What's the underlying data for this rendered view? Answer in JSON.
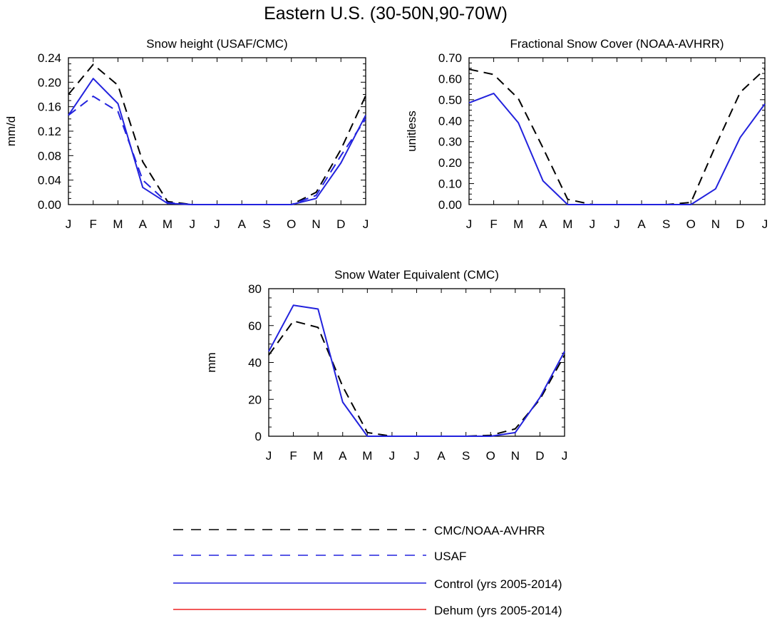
{
  "title": "Eastern U.S. (30-50N,90-70W)",
  "colors": {
    "cmc": "#000000",
    "usaf": "#2222dd",
    "control": "#2222dd",
    "dehum": "#ee2222"
  },
  "legend": [
    {
      "label": "CMC/NOAA-AVHRR",
      "color": "#000000",
      "dash": true
    },
    {
      "label": "USAF",
      "color": "#2222dd",
      "dash": true
    },
    {
      "label": "Control (yrs 2005-2014)",
      "color": "#2222dd",
      "dash": false
    },
    {
      "label": "Dehum (yrs 2005-2014)",
      "color": "#ee2222",
      "dash": false
    }
  ],
  "chart_data": [
    {
      "type": "line",
      "title": "Snow height (USAF/CMC)",
      "xlabel": "",
      "ylabel": "mm/d",
      "categories": [
        "J",
        "F",
        "M",
        "A",
        "M",
        "J",
        "J",
        "A",
        "S",
        "O",
        "N",
        "D",
        "J"
      ],
      "ylim": [
        0,
        0.24
      ],
      "yticks": [
        "0.00",
        "0.04",
        "0.08",
        "0.12",
        "0.16",
        "0.20",
        "0.24"
      ],
      "series": [
        {
          "name": "CMC/NOAA-AVHRR",
          "color": "#000000",
          "dash": true,
          "values": [
            0.18,
            0.229,
            0.195,
            0.07,
            0.005,
            0,
            0,
            0,
            0,
            0,
            0.02,
            0.09,
            0.178
          ]
        },
        {
          "name": "USAF",
          "color": "#2222dd",
          "dash": true,
          "values": [
            0.146,
            0.177,
            0.152,
            0.04,
            0.003,
            0,
            0,
            0,
            0,
            0,
            0.015,
            0.08,
            0.14
          ]
        },
        {
          "name": "Control (yrs 2005-2014)",
          "color": "#2222dd",
          "dash": false,
          "values": [
            0.146,
            0.206,
            0.165,
            0.028,
            0.002,
            0,
            0,
            0,
            0,
            0,
            0.01,
            0.068,
            0.146
          ]
        }
      ]
    },
    {
      "type": "line",
      "title": "Fractional Snow Cover (NOAA-AVHRR)",
      "xlabel": "",
      "ylabel": "unitless",
      "categories": [
        "J",
        "F",
        "M",
        "A",
        "M",
        "J",
        "J",
        "A",
        "S",
        "O",
        "N",
        "D",
        "J"
      ],
      "ylim": [
        0,
        0.7
      ],
      "yticks": [
        "0.00",
        "0.10",
        "0.20",
        "0.30",
        "0.40",
        "0.50",
        "0.60",
        "0.70"
      ],
      "series": [
        {
          "name": "CMC/NOAA-AVHRR",
          "color": "#000000",
          "dash": true,
          "values": [
            0.645,
            0.62,
            0.505,
            0.27,
            0.025,
            0,
            0,
            0,
            0,
            0.01,
            0.28,
            0.535,
            0.645
          ]
        },
        {
          "name": "Control (yrs 2005-2014)",
          "color": "#2222dd",
          "dash": false,
          "values": [
            0.485,
            0.53,
            0.39,
            0.113,
            0,
            0,
            0,
            0,
            0,
            0,
            0.075,
            0.32,
            0.48
          ]
        }
      ]
    },
    {
      "type": "line",
      "title": "Snow Water Equivalent (CMC)",
      "xlabel": "",
      "ylabel": "mm",
      "categories": [
        "J",
        "F",
        "M",
        "A",
        "M",
        "J",
        "J",
        "A",
        "S",
        "O",
        "N",
        "D",
        "J"
      ],
      "ylim": [
        0,
        80
      ],
      "yticks": [
        "0",
        "20",
        "40",
        "60",
        "80"
      ],
      "series": [
        {
          "name": "CMC/NOAA-AVHRR",
          "color": "#000000",
          "dash": true,
          "values": [
            44,
            62.5,
            59,
            27,
            2,
            0,
            0,
            0,
            0,
            0.5,
            4,
            20,
            44
          ]
        },
        {
          "name": "Control (yrs 2005-2014)",
          "color": "#2222dd",
          "dash": false,
          "values": [
            46,
            71,
            69,
            18.5,
            0,
            0,
            0,
            0,
            0,
            0,
            2,
            21,
            46
          ]
        }
      ]
    }
  ]
}
